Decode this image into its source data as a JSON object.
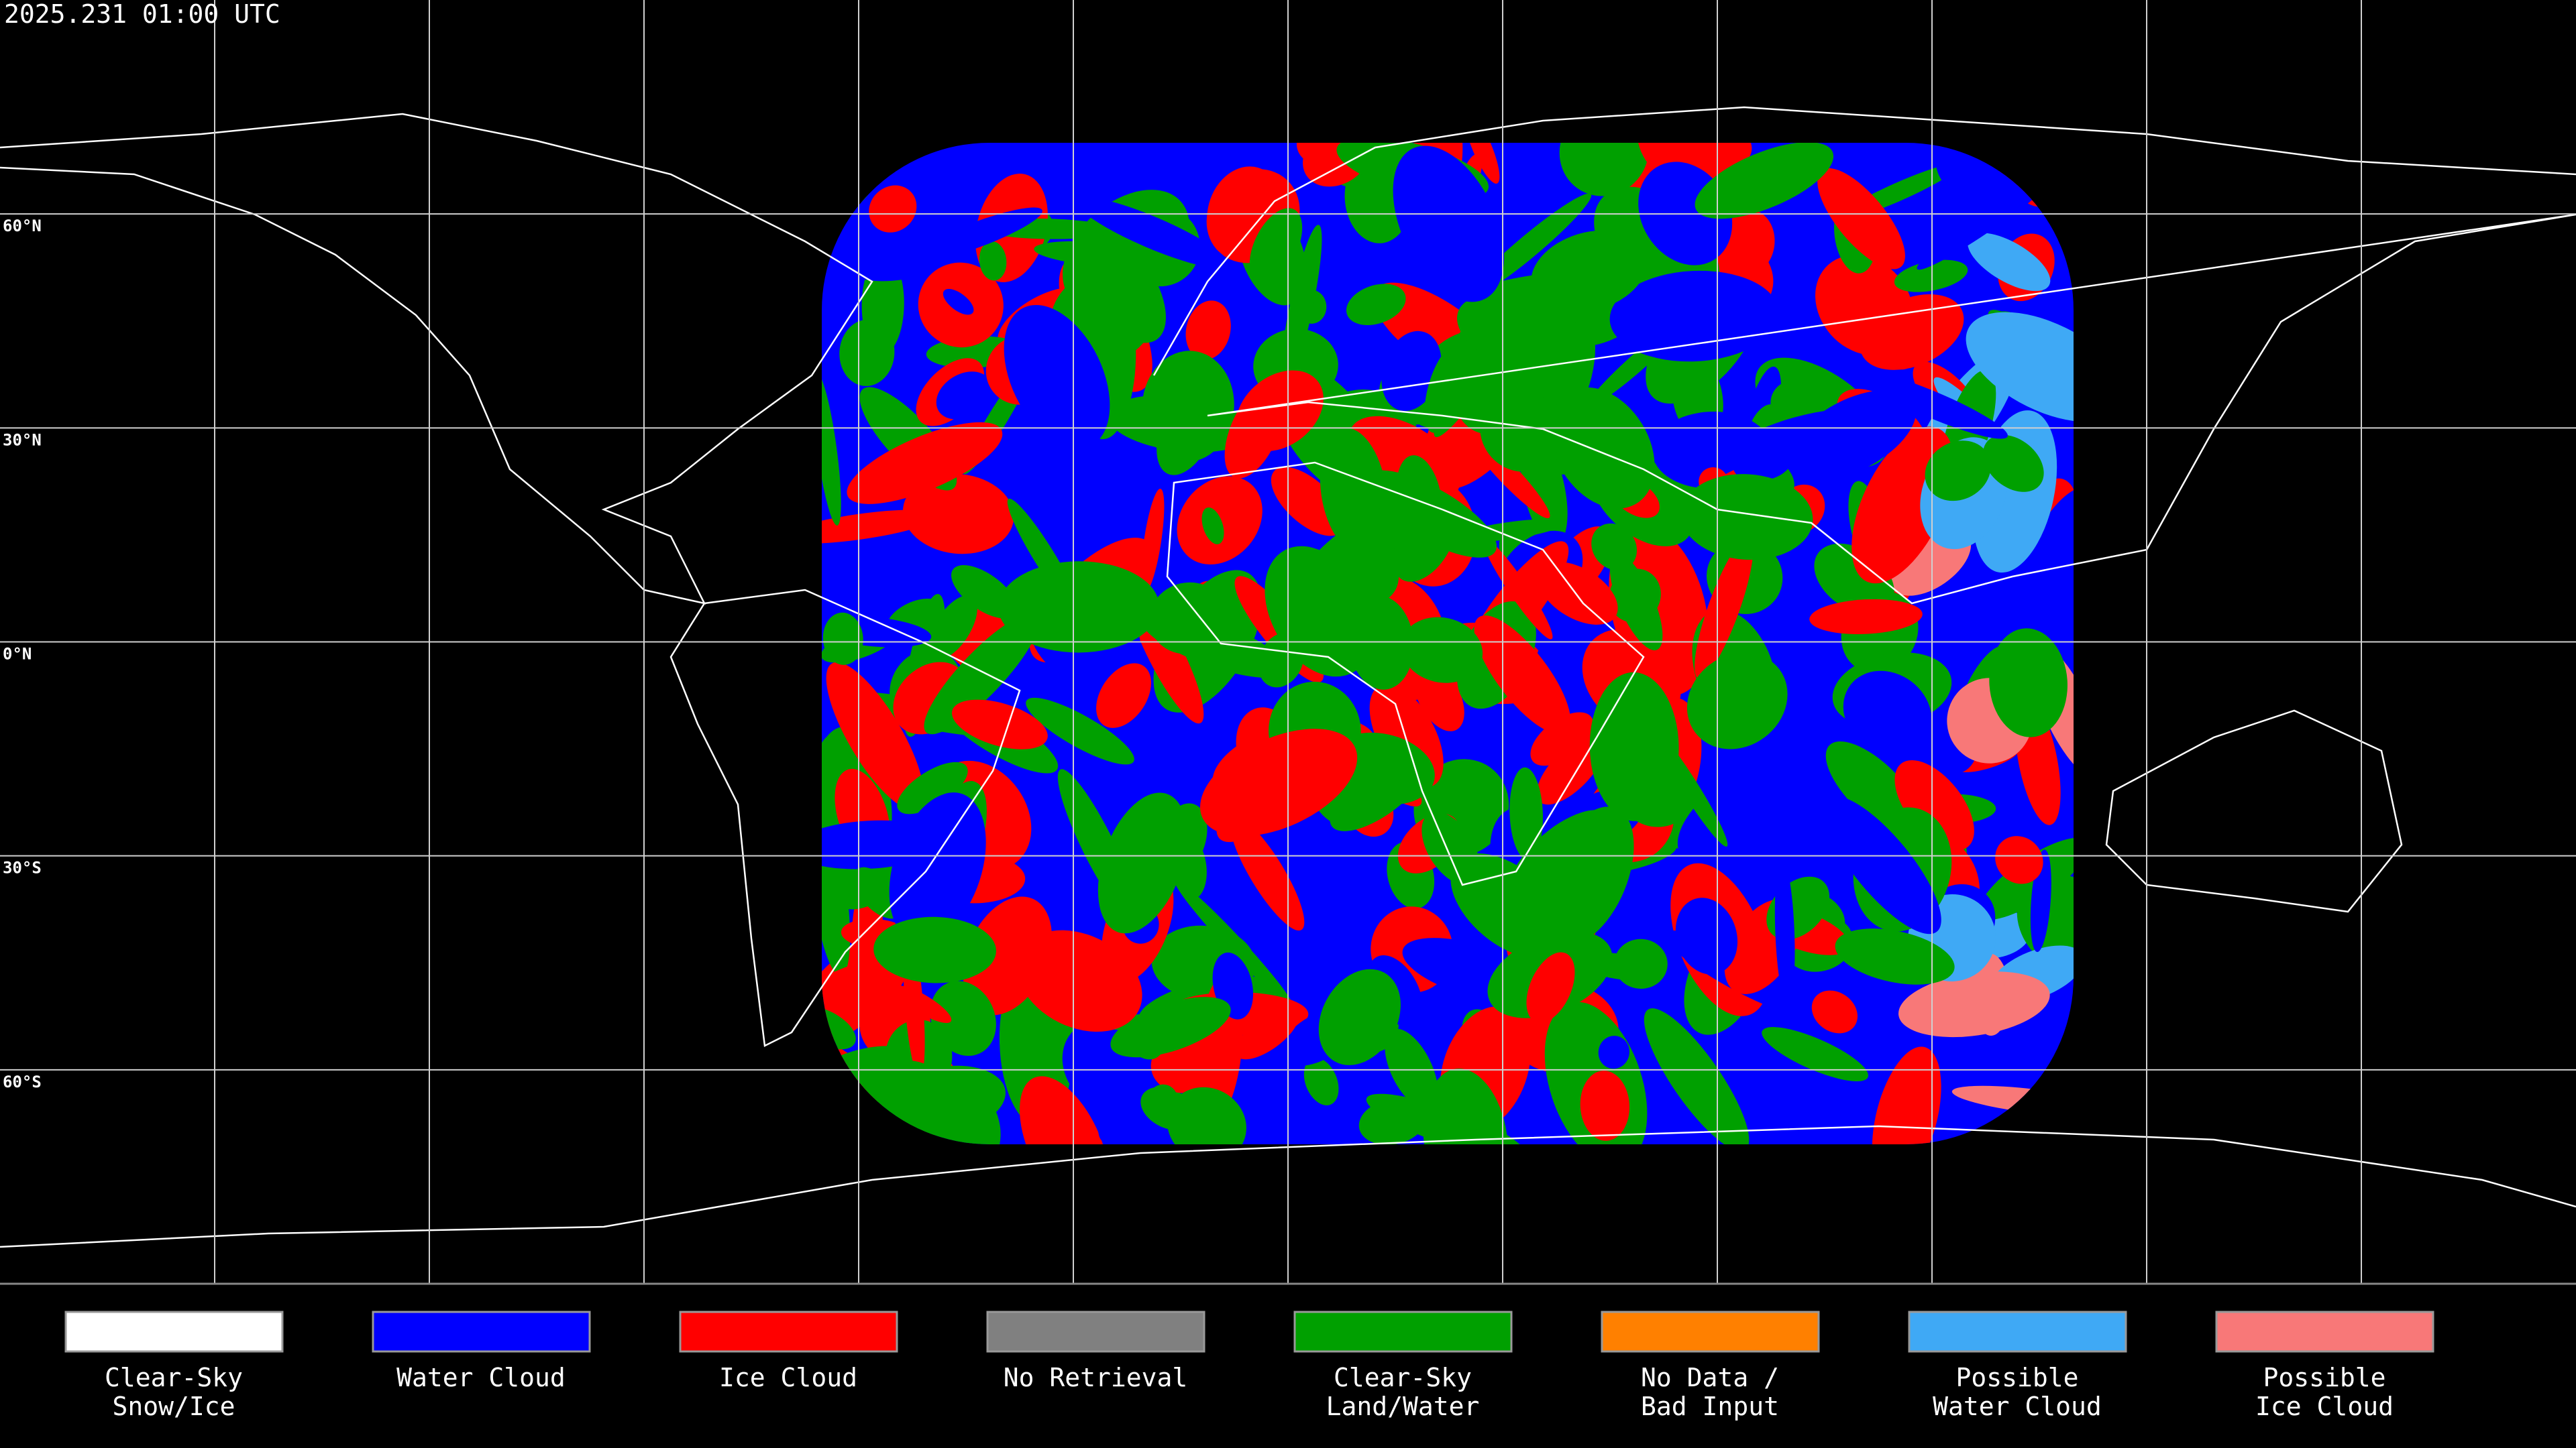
{
  "timestamp": "2025.231 01:00 UTC",
  "lat_labels": [
    {
      "value": 60,
      "label": "60°N"
    },
    {
      "value": 30,
      "label": "30°N"
    },
    {
      "value": 0,
      "label": "0°N"
    },
    {
      "value": -30,
      "label": "30°S"
    },
    {
      "value": -60,
      "label": "60°S"
    }
  ],
  "legend": [
    {
      "lines": [
        "Clear-Sky",
        "Snow/Ice"
      ],
      "color": "#ffffff"
    },
    {
      "lines": [
        "Water Cloud"
      ],
      "color": "#0000ff"
    },
    {
      "lines": [
        "Ice Cloud"
      ],
      "color": "#ff0000"
    },
    {
      "lines": [
        "No Retrieval"
      ],
      "color": "#808080"
    },
    {
      "lines": [
        "Clear-Sky",
        "Land/Water"
      ],
      "color": "#00a000"
    },
    {
      "lines": [
        "No Data /",
        "Bad Input"
      ],
      "color": "#ff8000"
    },
    {
      "lines": [
        "Possible",
        "Water Cloud"
      ],
      "color": "#3fa9f5"
    },
    {
      "lines": [
        "Possible",
        "Ice Cloud"
      ],
      "color": "#f87878"
    }
  ]
}
